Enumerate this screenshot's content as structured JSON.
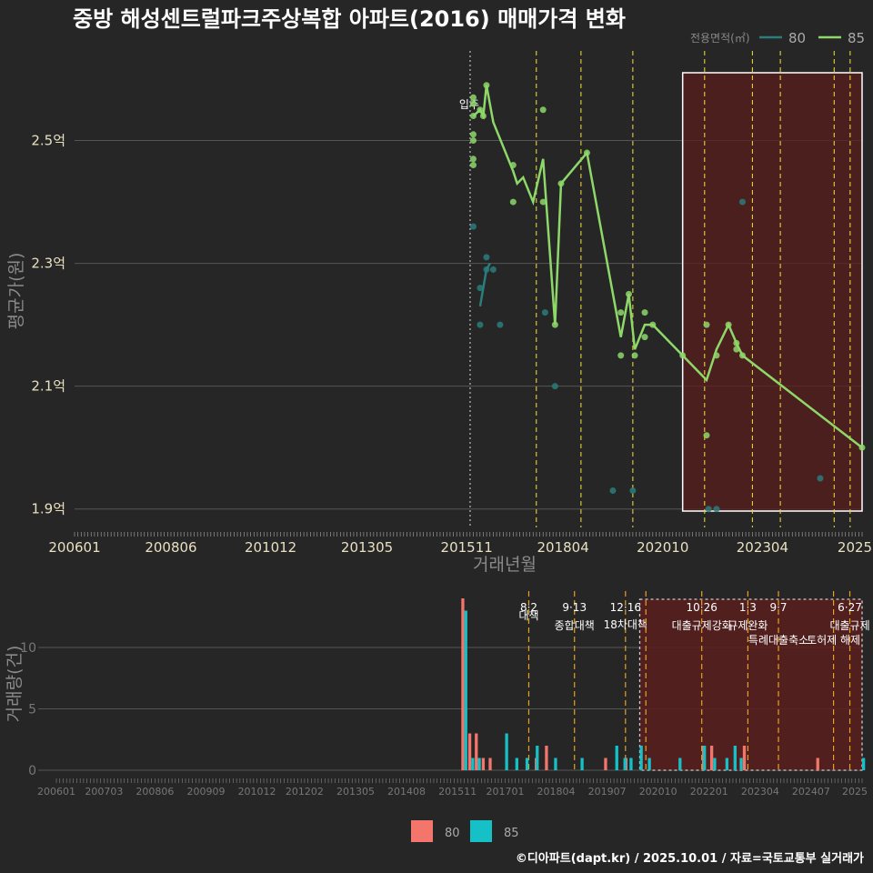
{
  "title": "중방 해성센트럴파크주상복합 아파트(2016) 매매가격 변화",
  "credit": "©디아파트(dapt.kr) / 2025.10.01 / 자료=국토교통부 실거래가",
  "colors": {
    "bg": "#262626",
    "s80": "#2a7d7a",
    "s85": "#8ed86a",
    "bar80": "#f4756b",
    "bar85": "#15c1c6",
    "grid": "#555555",
    "vline": "#e6d23a",
    "highlight": "#5a1e1e"
  },
  "chart_data": [
    {
      "type": "line",
      "ylabel": "평균가(원)",
      "xlabel": "거래년월",
      "x_ticks": [
        "200601",
        "200806",
        "201012",
        "201305",
        "201511",
        "201804",
        "202010",
        "202304",
        "2025"
      ],
      "y_ticks": [
        "1.9억",
        "2.1억",
        "2.3억",
        "2.5억"
      ],
      "ylim": [
        1.87,
        2.64
      ],
      "legend": {
        "title": "전용면적(㎡)",
        "items": [
          "80",
          "85"
        ],
        "placement": "top-right"
      },
      "annotation": "입주",
      "series": [
        {
          "name": "80",
          "line": [
            [
              2016.17,
              2.23
            ],
            [
              2016.25,
              2.26
            ],
            [
              2016.33,
              2.29
            ],
            [
              2016.42,
              2.3
            ]
          ],
          "points": [
            [
              2016.0,
              2.36
            ],
            [
              2016.17,
              2.26
            ],
            [
              2016.17,
              2.2
            ],
            [
              2016.33,
              2.31
            ],
            [
              2016.33,
              2.29
            ],
            [
              2016.5,
              2.29
            ],
            [
              2016.67,
              2.2
            ],
            [
              2017.8,
              2.22
            ],
            [
              2018.05,
              2.1
            ],
            [
              2019.5,
              1.93
            ],
            [
              2020.0,
              1.93
            ],
            [
              2021.9,
              1.9
            ],
            [
              2022.1,
              1.9
            ],
            [
              2022.75,
              2.4
            ],
            [
              2024.7,
              1.95
            ]
          ]
        },
        {
          "name": "85",
          "line": [
            [
              2016.0,
              2.54
            ],
            [
              2016.17,
              2.55
            ],
            [
              2016.25,
              2.54
            ],
            [
              2016.33,
              2.59
            ],
            [
              2016.5,
              2.53
            ],
            [
              2017.0,
              2.45
            ],
            [
              2017.1,
              2.43
            ],
            [
              2017.25,
              2.44
            ],
            [
              2017.5,
              2.4
            ],
            [
              2017.75,
              2.47
            ],
            [
              2018.05,
              2.2
            ],
            [
              2018.2,
              2.43
            ],
            [
              2018.85,
              2.48
            ],
            [
              2019.7,
              2.18
            ],
            [
              2019.9,
              2.25
            ],
            [
              2020.05,
              2.16
            ],
            [
              2020.3,
              2.2
            ],
            [
              2020.5,
              2.2
            ],
            [
              2021.25,
              2.15
            ],
            [
              2021.85,
              2.11
            ],
            [
              2022.1,
              2.16
            ],
            [
              2022.4,
              2.2
            ],
            [
              2022.6,
              2.17
            ],
            [
              2022.75,
              2.15
            ],
            [
              2025.75,
              2.0
            ]
          ],
          "points": [
            [
              2016.0,
              2.57
            ],
            [
              2016.0,
              2.56
            ],
            [
              2016.0,
              2.54
            ],
            [
              2016.0,
              2.51
            ],
            [
              2016.0,
              2.5
            ],
            [
              2016.0,
              2.47
            ],
            [
              2016.0,
              2.46
            ],
            [
              2016.17,
              2.55
            ],
            [
              2016.25,
              2.54
            ],
            [
              2016.33,
              2.59
            ],
            [
              2017.0,
              2.46
            ],
            [
              2017.0,
              2.4
            ],
            [
              2017.75,
              2.55
            ],
            [
              2017.75,
              2.4
            ],
            [
              2018.05,
              2.2
            ],
            [
              2018.2,
              2.43
            ],
            [
              2018.85,
              2.48
            ],
            [
              2019.7,
              2.22
            ],
            [
              2019.7,
              2.15
            ],
            [
              2019.9,
              2.25
            ],
            [
              2020.05,
              2.15
            ],
            [
              2020.3,
              2.22
            ],
            [
              2020.3,
              2.18
            ],
            [
              2020.5,
              2.2
            ],
            [
              2021.25,
              2.15
            ],
            [
              2021.85,
              2.2
            ],
            [
              2021.85,
              2.02
            ],
            [
              2022.1,
              2.15
            ],
            [
              2022.4,
              2.2
            ],
            [
              2022.6,
              2.17
            ],
            [
              2022.6,
              2.16
            ],
            [
              2022.75,
              2.15
            ],
            [
              2025.75,
              2.0
            ]
          ]
        }
      ],
      "highlight_range": [
        2021.25,
        2025.75
      ],
      "move_in_line": 2015.92,
      "policy_lines": [
        2017.58,
        2018.7,
        2020.0,
        2021.8,
        2023.0,
        2023.7,
        2025.05,
        2025.45
      ]
    },
    {
      "type": "bar",
      "ylabel": "거래량(건)",
      "x_ticks": [
        "200601",
        "200703",
        "200806",
        "200909",
        "201012",
        "201202",
        "201305",
        "201408",
        "201511",
        "201701",
        "201804",
        "201907",
        "202010",
        "202201",
        "202304",
        "202407",
        "2025"
      ],
      "y_ticks": [
        "0",
        "5",
        "10"
      ],
      "ylim": [
        0,
        14
      ],
      "legend": {
        "items": [
          "80",
          "85"
        ],
        "placement": "bottom-center"
      },
      "series": [
        {
          "name": "80",
          "bars": [
            [
              2016.0,
              14
            ],
            [
              2016.17,
              3
            ],
            [
              2016.33,
              3
            ],
            [
              2016.5,
              1
            ],
            [
              2016.67,
              1
            ],
            [
              2017.8,
              1
            ],
            [
              2018.05,
              2
            ],
            [
              2019.5,
              1
            ],
            [
              2020.0,
              1
            ],
            [
              2021.9,
              2
            ],
            [
              2022.1,
              2
            ],
            [
              2022.9,
              2
            ],
            [
              2024.7,
              1
            ]
          ]
        },
        {
          "name": "85",
          "bars": [
            [
              2016.0,
              13
            ],
            [
              2016.17,
              1
            ],
            [
              2016.33,
              1
            ],
            [
              2017.0,
              3
            ],
            [
              2017.25,
              1
            ],
            [
              2017.5,
              1
            ],
            [
              2017.75,
              2
            ],
            [
              2018.2,
              1
            ],
            [
              2018.85,
              1
            ],
            [
              2019.7,
              2
            ],
            [
              2019.9,
              1
            ],
            [
              2020.05,
              1
            ],
            [
              2020.3,
              2
            ],
            [
              2020.5,
              1
            ],
            [
              2021.25,
              1
            ],
            [
              2021.85,
              2
            ],
            [
              2022.1,
              1
            ],
            [
              2022.4,
              1
            ],
            [
              2022.6,
              2
            ],
            [
              2022.75,
              1
            ],
            [
              2025.75,
              1
            ]
          ]
        }
      ],
      "events": [
        {
          "x": 2017.58,
          "date": "8·2",
          "label": "대책"
        },
        {
          "x": 2018.7,
          "date": "9·13",
          "label": "종합대책"
        },
        {
          "x": 2019.95,
          "date": "12·16",
          "label": "18차대책"
        },
        {
          "x": 2020.45,
          "date": "",
          "label": ""
        },
        {
          "x": 2021.82,
          "date": "10·26",
          "label": "대출규제강화"
        },
        {
          "x": 2022.95,
          "date": "1·3",
          "label": "규제완화"
        },
        {
          "x": 2023.7,
          "date": "9·7",
          "label": "특례대출축소"
        },
        {
          "x": 2025.05,
          "date": "",
          "label": "토허제 해제"
        },
        {
          "x": 2025.45,
          "date": "6·27",
          "label": "대출규제"
        }
      ]
    }
  ]
}
